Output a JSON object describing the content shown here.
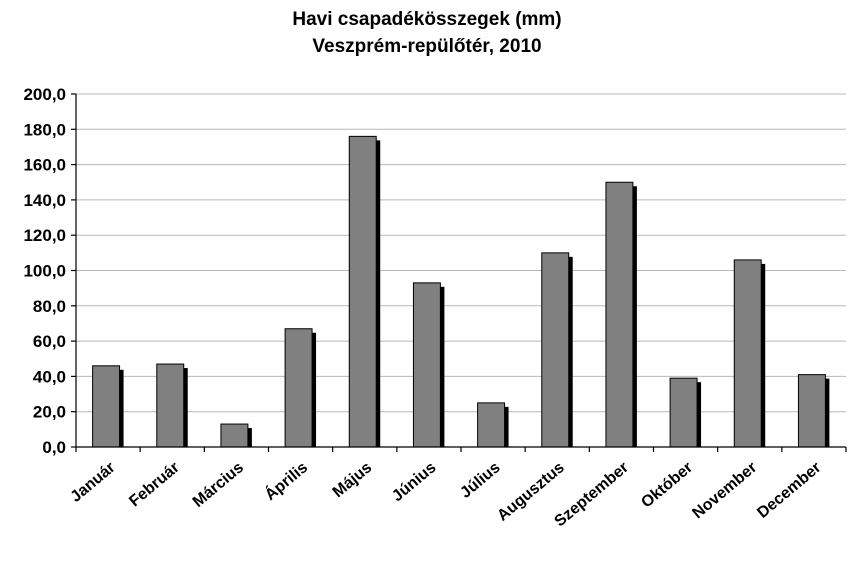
{
  "chart_data": {
    "type": "bar",
    "title": "Havi csapadékösszegek (mm)",
    "subtitle": "Veszprém-repülőtér, 2010",
    "xlabel": "",
    "ylabel": "",
    "ylim": [
      0,
      200
    ],
    "ytick_step": 20,
    "ytick_labels": [
      "0,0",
      "20,0",
      "40,0",
      "60,0",
      "80,0",
      "100,0",
      "120,0",
      "140,0",
      "160,0",
      "180,0",
      "200,0"
    ],
    "grid": true,
    "legend": "none",
    "categories": [
      "Január",
      "Február",
      "Március",
      "Április",
      "Május",
      "Június",
      "Július",
      "Augusztus",
      "Szeptember",
      "Október",
      "November",
      "December"
    ],
    "values": [
      46,
      47,
      13,
      67,
      176,
      93,
      25,
      110,
      150,
      39,
      106,
      41
    ],
    "colors": {
      "bar": "#808080",
      "shadow": "#000000",
      "grid": "#b8b8b8"
    }
  }
}
